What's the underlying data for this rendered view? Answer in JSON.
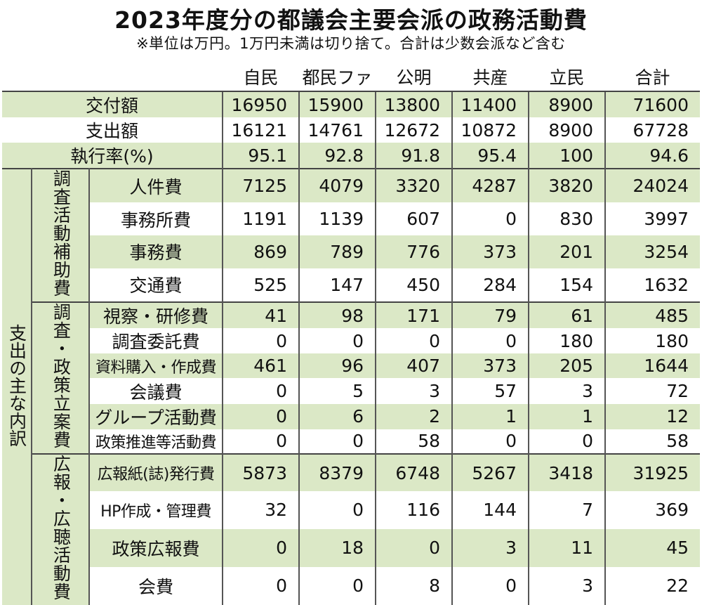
{
  "chart_data": {
    "type": "table",
    "title": "2023年度分の都議会主要会派の政務活動費",
    "subtitle": "※単位は万円。1万円未満は切り捨て。合計は少数会派など含む",
    "columns": [
      "自民",
      "都民ファ",
      "公明",
      "共産",
      "立民",
      "合計"
    ],
    "summary_rows": [
      {
        "label": "交付額",
        "values": [
          "16950",
          "15900",
          "13800",
          "11400",
          "8900",
          "71600"
        ]
      },
      {
        "label": "支出額",
        "values": [
          "16121",
          "14761",
          "12672",
          "10872",
          "8900",
          "67728"
        ]
      },
      {
        "label": "執行率(%)",
        "values": [
          "95.1",
          "92.8",
          "91.8",
          "95.4",
          "100",
          "94.6"
        ]
      }
    ],
    "breakdown_label": "支出の主な内訳",
    "groups": [
      {
        "label": "調査活動補助費",
        "rows": [
          {
            "label": "人件費",
            "values": [
              "7125",
              "4079",
              "3320",
              "4287",
              "3820",
              "24024"
            ]
          },
          {
            "label": "事務所費",
            "values": [
              "1191",
              "1139",
              "607",
              "0",
              "830",
              "3997"
            ]
          },
          {
            "label": "事務費",
            "values": [
              "869",
              "789",
              "776",
              "373",
              "201",
              "3254"
            ]
          },
          {
            "label": "交通費",
            "values": [
              "525",
              "147",
              "450",
              "284",
              "154",
              "1632"
            ]
          }
        ]
      },
      {
        "label": "調査・政策立案費",
        "rows": [
          {
            "label": "視察・研修費",
            "values": [
              "41",
              "98",
              "171",
              "79",
              "61",
              "485"
            ]
          },
          {
            "label": "調査委託費",
            "values": [
              "0",
              "0",
              "0",
              "0",
              "180",
              "180"
            ]
          },
          {
            "label": "資料購入・作成費",
            "values": [
              "461",
              "96",
              "407",
              "373",
              "205",
              "1644"
            ]
          },
          {
            "label": "会議費",
            "values": [
              "0",
              "5",
              "3",
              "57",
              "3",
              "72"
            ]
          },
          {
            "label": "グループ活動費",
            "values": [
              "0",
              "6",
              "2",
              "1",
              "1",
              "12"
            ]
          },
          {
            "label": "政策推進等活動費",
            "values": [
              "0",
              "0",
              "58",
              "0",
              "0",
              "58"
            ]
          }
        ]
      },
      {
        "label": "広報・広聴活動費",
        "rows": [
          {
            "label": "広報紙(誌)発行費",
            "values": [
              "5873",
              "8379",
              "6748",
              "5267",
              "3418",
              "31925"
            ]
          },
          {
            "label": "HP作成・管理費",
            "values": [
              "32",
              "0",
              "116",
              "144",
              "7",
              "369"
            ]
          },
          {
            "label": "政策広報費",
            "values": [
              "0",
              "18",
              "0",
              "3",
              "11",
              "45"
            ]
          },
          {
            "label": "会費",
            "values": [
              "0",
              "0",
              "8",
              "0",
              "3",
              "22"
            ]
          }
        ]
      }
    ]
  }
}
